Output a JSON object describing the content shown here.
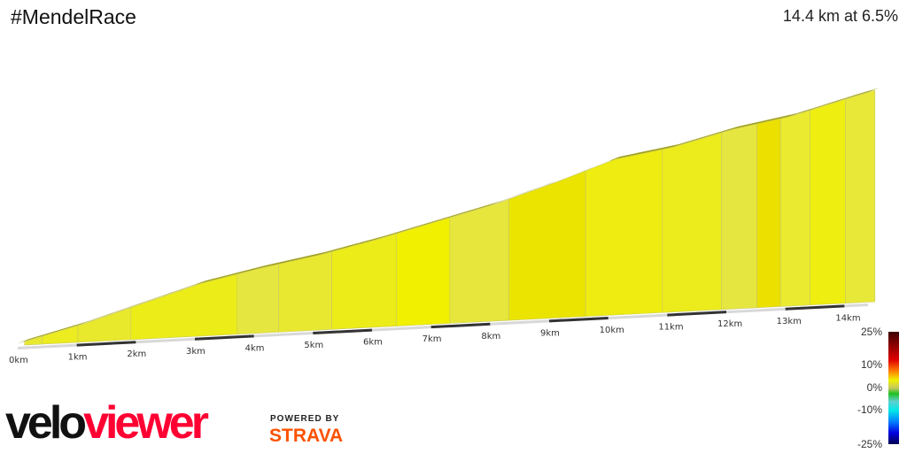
{
  "header": {
    "title": "#MendelRace",
    "summary": "14.4 km at 6.5%"
  },
  "chart_data": {
    "type": "area",
    "title": "#MendelRace",
    "xlabel": "distance",
    "ylabel": "",
    "distance_km": 14.4,
    "average_gradient_pct": 6.5,
    "x_ticks": [
      "0km",
      "1km",
      "2km",
      "3km",
      "4km",
      "5km",
      "6km",
      "7km",
      "8km",
      "9km",
      "10km",
      "11km",
      "12km",
      "13km",
      "14km"
    ],
    "segments": [
      {
        "start": 0,
        "end": 0.3,
        "color": "#e8e830"
      },
      {
        "start": 0.3,
        "end": 0.9,
        "color": "#ecec20"
      },
      {
        "start": 0.9,
        "end": 1.8,
        "color": "#e8e82c"
      },
      {
        "start": 1.8,
        "end": 3.6,
        "color": "#ecec18"
      },
      {
        "start": 3.6,
        "end": 4.3,
        "color": "#e6e640"
      },
      {
        "start": 4.3,
        "end": 5.2,
        "color": "#e8e830"
      },
      {
        "start": 5.2,
        "end": 6.3,
        "color": "#ecec18"
      },
      {
        "start": 6.3,
        "end": 7.2,
        "color": "#f0f000"
      },
      {
        "start": 7.2,
        "end": 8.2,
        "color": "#e6e63c"
      },
      {
        "start": 8.2,
        "end": 9.5,
        "color": "#eae400"
      },
      {
        "start": 9.5,
        "end": 10.8,
        "color": "#eeec10"
      },
      {
        "start": 10.8,
        "end": 11.8,
        "color": "#ecec1c"
      },
      {
        "start": 11.8,
        "end": 12.4,
        "color": "#e6e640"
      },
      {
        "start": 12.4,
        "end": 12.8,
        "color": "#ece000"
      },
      {
        "start": 12.8,
        "end": 13.3,
        "color": "#eaea30"
      },
      {
        "start": 13.3,
        "end": 13.9,
        "color": "#eeee10"
      },
      {
        "start": 13.9,
        "end": 14.4,
        "color": "#e8e838"
      }
    ],
    "legend": {
      "labels": [
        "25%",
        "10%",
        "0%",
        "-10%",
        "-25%"
      ]
    }
  },
  "branding": {
    "logo_a": "velo",
    "logo_b": "viewer",
    "powered": "POWERED BY",
    "strava": "STRAVA"
  }
}
